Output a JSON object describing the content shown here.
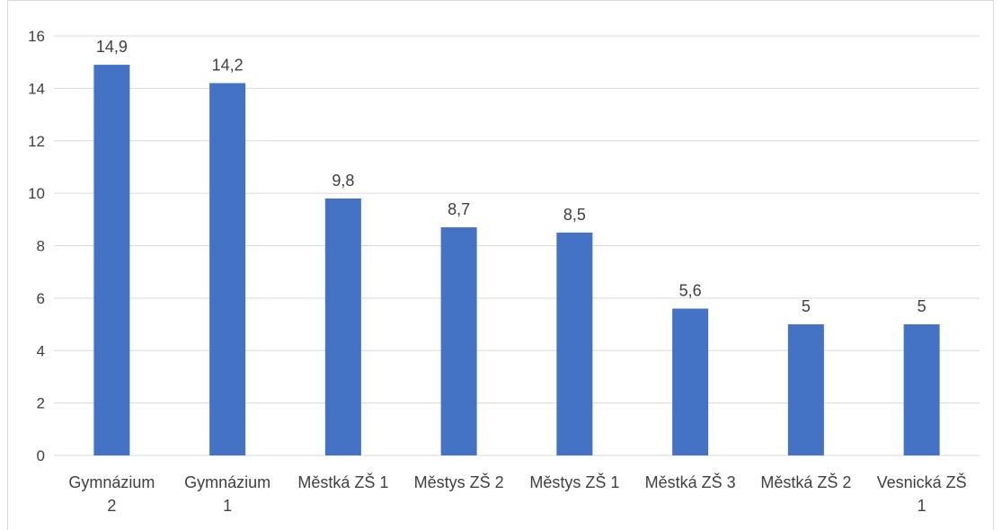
{
  "chart_data": {
    "type": "bar",
    "title": "",
    "xlabel": "",
    "ylabel": "",
    "categories": [
      [
        "Gymnázium",
        "2"
      ],
      [
        "Gymnázium",
        "1"
      ],
      [
        "Městká ZŠ 1"
      ],
      [
        "Městys ZŠ 2"
      ],
      [
        "Městys ZŠ 1"
      ],
      [
        "Městká ZŠ 3"
      ],
      [
        "Městká ZŠ 2"
      ],
      [
        "Vesnická ZŠ",
        "1"
      ]
    ],
    "values": [
      14.9,
      14.2,
      9.8,
      8.7,
      8.5,
      5.6,
      5,
      5
    ],
    "data_labels": [
      "14,9",
      "14,2",
      "9,8",
      "8,7",
      "8,5",
      "5,6",
      "5",
      "5"
    ],
    "ylim": [
      0,
      16
    ],
    "yticks": [
      0,
      2,
      4,
      6,
      8,
      10,
      12,
      14,
      16
    ],
    "grid": true,
    "legend": "none",
    "colors": {
      "bar": "#4472c4",
      "grid": "#d9d9d9",
      "text": "#404040"
    }
  }
}
